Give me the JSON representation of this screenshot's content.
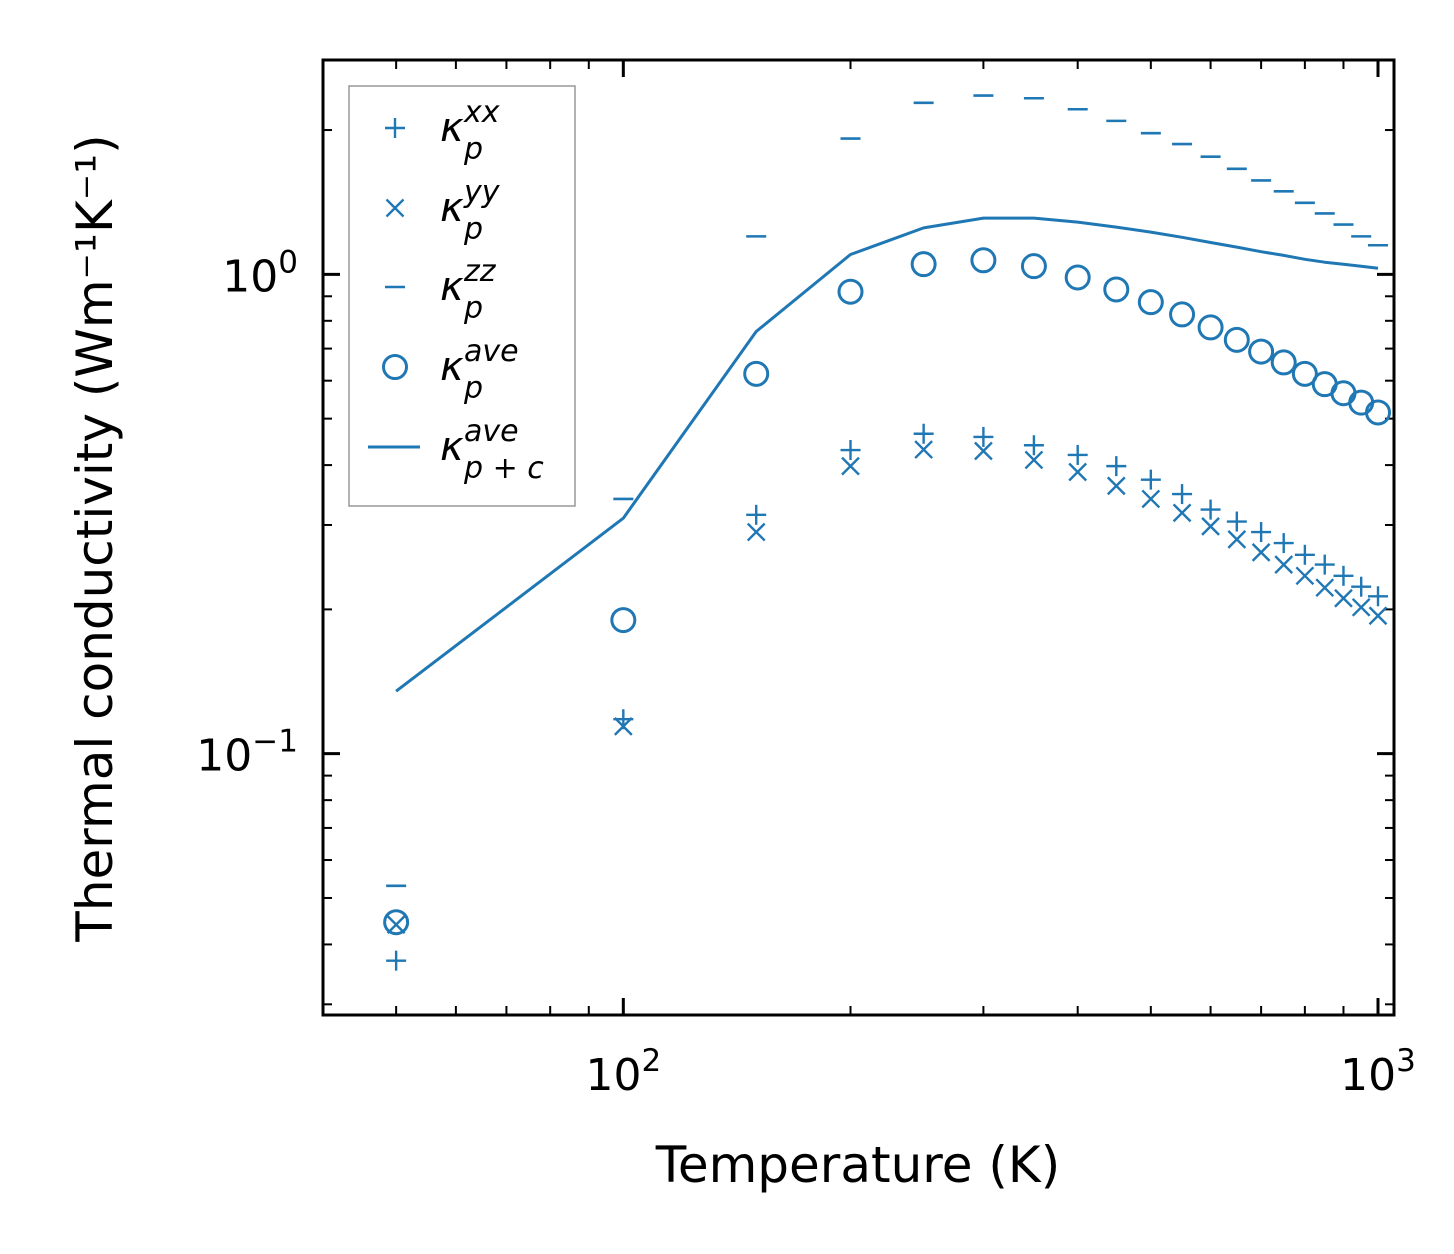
{
  "chart_data": {
    "type": "scatter",
    "scale": {
      "x": "log",
      "y": "log"
    },
    "x": [
      50,
      100,
      150,
      200,
      250,
      300,
      350,
      400,
      450,
      500,
      550,
      600,
      650,
      700,
      750,
      800,
      850,
      900,
      950,
      1000
    ],
    "xlabel": "Temperature (K)",
    "ylabel": "Thermal conductivity (Wm⁻¹K⁻¹)",
    "xlim": [
      40,
      1050
    ],
    "ylim": [
      0.0285,
      2.8
    ],
    "x_ticks": [
      {
        "value": 100,
        "base": "10",
        "exp": "2"
      },
      {
        "value": 1000,
        "base": "10",
        "exp": "3"
      }
    ],
    "y_ticks": [
      {
        "value": 0.1,
        "base": "10",
        "exp": "−1"
      },
      {
        "value": 1,
        "base": "10",
        "exp": "0"
      }
    ],
    "color": "#1f77b4",
    "series": [
      {
        "id": "kxx",
        "marker": "plus",
        "symbol": "κ",
        "sub": "p",
        "sup": "xx",
        "values": [
          0.037,
          0.118,
          0.315,
          0.43,
          0.465,
          0.458,
          0.44,
          0.42,
          0.398,
          0.373,
          0.348,
          0.323,
          0.305,
          0.29,
          0.275,
          0.26,
          0.248,
          0.235,
          0.223,
          0.213
        ]
      },
      {
        "id": "kyy",
        "marker": "x",
        "symbol": "κ",
        "sub": "p",
        "sup": "yy",
        "values": [
          0.044,
          0.114,
          0.29,
          0.398,
          0.431,
          0.428,
          0.41,
          0.387,
          0.362,
          0.34,
          0.318,
          0.298,
          0.28,
          0.263,
          0.248,
          0.235,
          0.222,
          0.211,
          0.202,
          0.194
        ]
      },
      {
        "id": "kzz",
        "marker": "dash",
        "symbol": "κ",
        "sub": "p",
        "sup": "zz",
        "values": [
          0.053,
          0.34,
          1.2,
          1.92,
          2.28,
          2.36,
          2.33,
          2.21,
          2.09,
          1.97,
          1.87,
          1.76,
          1.66,
          1.57,
          1.49,
          1.41,
          1.34,
          1.27,
          1.2,
          1.15
        ]
      },
      {
        "id": "kave",
        "marker": "circle",
        "symbol": "κ",
        "sub": "p",
        "sup": "ave",
        "values": [
          0.0445,
          0.19,
          0.62,
          0.92,
          1.05,
          1.07,
          1.04,
          0.985,
          0.93,
          0.875,
          0.825,
          0.775,
          0.73,
          0.69,
          0.655,
          0.62,
          0.59,
          0.565,
          0.54,
          0.515
        ]
      },
      {
        "id": "ktot",
        "marker": "line",
        "symbol": "κ",
        "sub": "p + c",
        "sup": "ave",
        "values": [
          0.135,
          0.31,
          0.76,
          1.1,
          1.25,
          1.31,
          1.31,
          1.285,
          1.255,
          1.225,
          1.195,
          1.165,
          1.14,
          1.115,
          1.095,
          1.075,
          1.06,
          1.05,
          1.04,
          1.03
        ]
      }
    ],
    "legend": "top-left"
  }
}
